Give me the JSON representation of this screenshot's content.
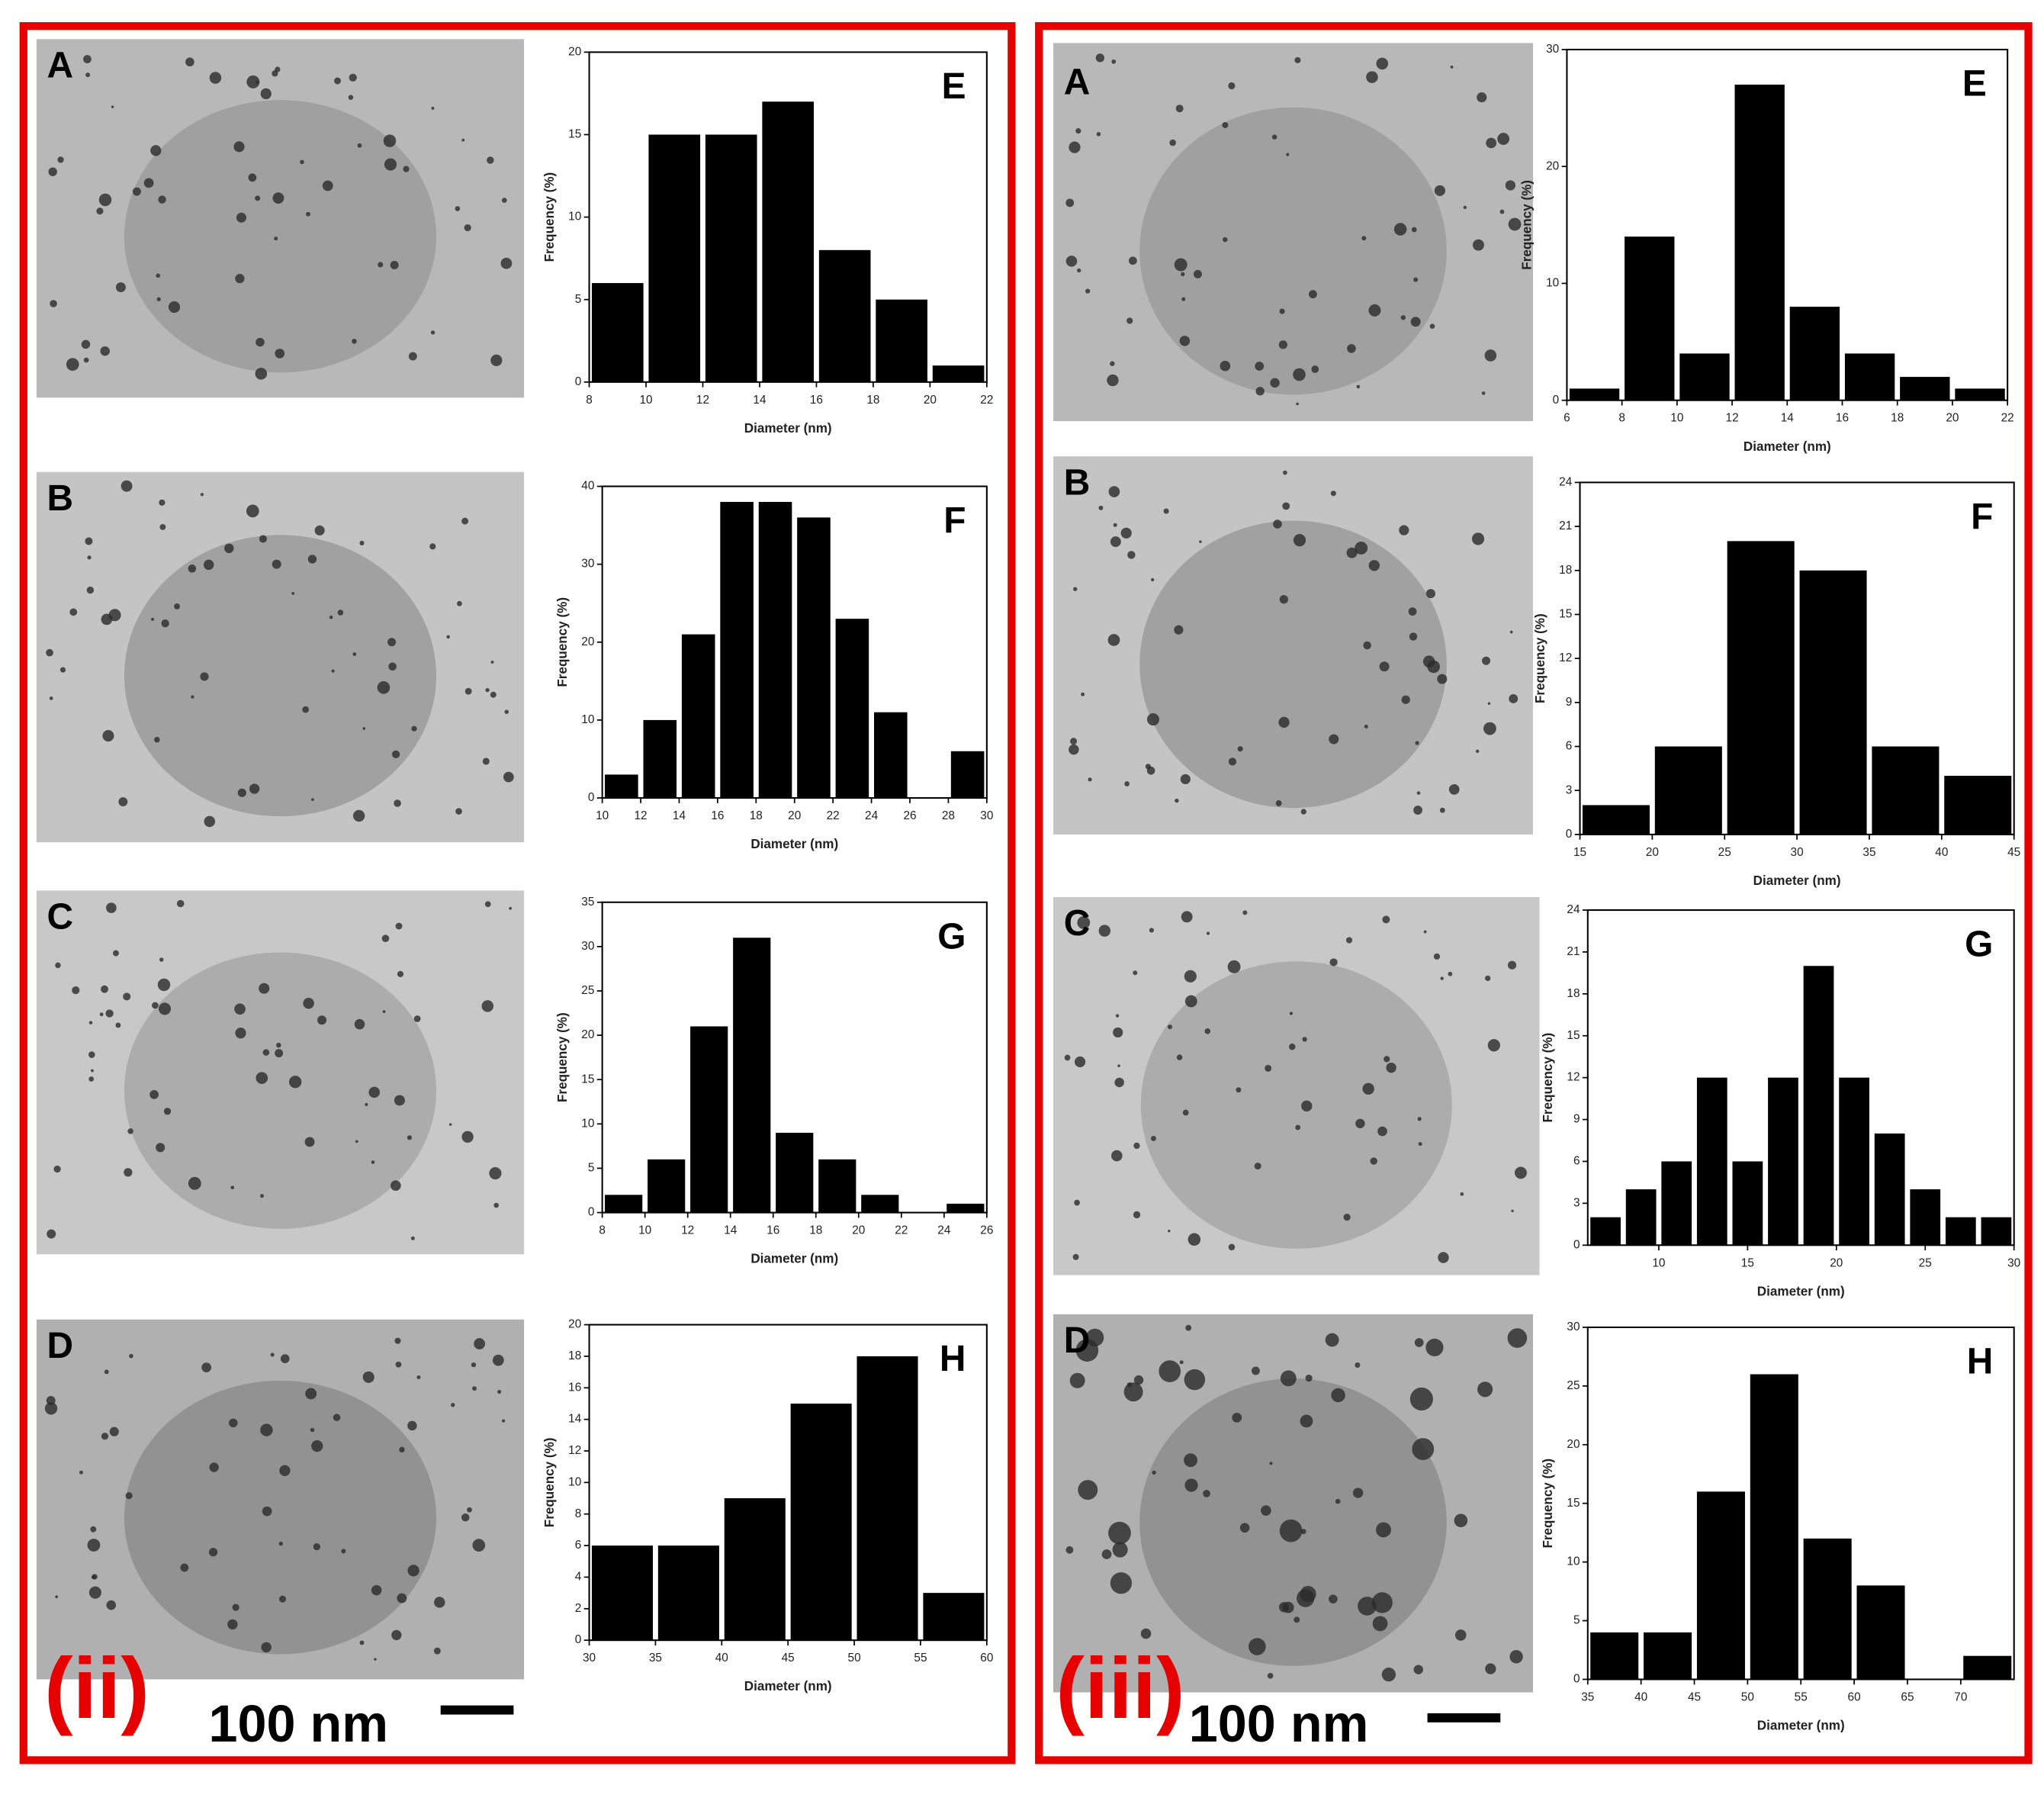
{
  "panels": [
    {
      "label": "(ii)",
      "scale_bar": "100 nm",
      "images": [
        "A",
        "B",
        "C",
        "D"
      ]
    },
    {
      "label": "(iii)",
      "scale_bar": "100 nm",
      "images": [
        "A",
        "B",
        "C",
        "D"
      ]
    }
  ],
  "chart_data": [
    {
      "type": "histogram",
      "title": "E",
      "x_label": "Diameter (nm)",
      "y_label": "Frequency (%)",
      "color": "#000000",
      "bins": [
        8,
        10,
        12,
        14,
        16,
        18,
        20,
        22
      ],
      "values": [
        6,
        15,
        15,
        17,
        8,
        5,
        1
      ],
      "xlim": [
        8,
        22
      ],
      "ylim": [
        0,
        20
      ],
      "xticks": [
        8,
        10,
        12,
        14,
        16,
        18,
        20,
        22
      ],
      "yticks": [
        0,
        5,
        10,
        15,
        20
      ]
    },
    {
      "type": "histogram",
      "title": "F",
      "x_label": "Diameter (nm)",
      "y_label": "Frequency (%)",
      "color": "#000000",
      "bins": [
        10,
        12,
        14,
        16,
        18,
        20,
        22,
        24,
        26,
        28,
        30
      ],
      "values": [
        3,
        10,
        21,
        38,
        38,
        36,
        23,
        11,
        0,
        6
      ],
      "xlim": [
        10,
        30
      ],
      "ylim": [
        0,
        40
      ],
      "xticks": [
        10,
        12,
        14,
        16,
        18,
        20,
        22,
        24,
        26,
        28,
        30
      ],
      "yticks": [
        0,
        10,
        20,
        30,
        40
      ]
    },
    {
      "type": "histogram",
      "title": "G",
      "x_label": "Diameter (nm)",
      "y_label": "Frequency (%)",
      "color": "#000000",
      "bins": [
        8,
        10,
        12,
        14,
        16,
        18,
        20,
        22,
        24,
        26
      ],
      "values": [
        2,
        6,
        21,
        31,
        9,
        6,
        2,
        0,
        1
      ],
      "xlim": [
        8,
        26
      ],
      "ylim": [
        0,
        35
      ],
      "xticks": [
        8,
        10,
        12,
        14,
        16,
        18,
        20,
        22,
        24,
        26
      ],
      "yticks": [
        0,
        5,
        10,
        15,
        20,
        25,
        30,
        35
      ]
    },
    {
      "type": "histogram",
      "title": "H",
      "x_label": "Diameter (nm)",
      "y_label": "Frequency (%)",
      "color": "#000000",
      "bins": [
        30,
        35,
        40,
        45,
        50,
        55,
        60
      ],
      "values": [
        6,
        6,
        9,
        15,
        18,
        3
      ],
      "xlim": [
        30,
        60
      ],
      "ylim": [
        0,
        20
      ],
      "xticks": [
        30,
        35,
        40,
        45,
        50,
        55,
        60
      ],
      "yticks": [
        0,
        2,
        4,
        6,
        8,
        10,
        12,
        14,
        16,
        18,
        20
      ]
    },
    {
      "type": "histogram",
      "title": "E",
      "x_label": "Diameter (nm)",
      "y_label": "Frequency (%)",
      "color": "#000000",
      "bins": [
        6,
        8,
        10,
        12,
        14,
        16,
        18,
        20,
        22
      ],
      "values": [
        1,
        14,
        4,
        27,
        8,
        4,
        2,
        1
      ],
      "xlim": [
        6,
        22
      ],
      "ylim": [
        0,
        30
      ],
      "xticks": [
        6,
        8,
        10,
        12,
        14,
        16,
        18,
        20,
        22
      ],
      "yticks": [
        0,
        10,
        20,
        30
      ]
    },
    {
      "type": "histogram",
      "title": "F",
      "x_label": "Diameter (nm)",
      "y_label": "Frequency (%)",
      "color": "#000000",
      "bins": [
        15,
        20,
        25,
        30,
        35,
        40,
        45
      ],
      "values": [
        2,
        6,
        20,
        18,
        6,
        4
      ],
      "xlim": [
        15,
        45
      ],
      "ylim": [
        0,
        24
      ],
      "xticks": [
        15,
        20,
        25,
        30,
        35,
        40,
        45
      ],
      "yticks": [
        0,
        3,
        6,
        9,
        12,
        15,
        18,
        21,
        24
      ]
    },
    {
      "type": "histogram",
      "title": "G",
      "x_label": "Diameter (nm)",
      "y_label": "Frequency (%)",
      "color": "#000000",
      "bins": [
        6,
        8,
        10,
        12,
        14,
        16,
        18,
        20,
        22,
        24,
        26,
        28,
        30
      ],
      "values": [
        2,
        4,
        6,
        12,
        6,
        12,
        20,
        12,
        8,
        4,
        2,
        2
      ],
      "xlim": [
        6,
        30
      ],
      "ylim": [
        0,
        24
      ],
      "xticks": [
        10,
        15,
        20,
        25,
        30
      ],
      "yticks": [
        0,
        3,
        6,
        9,
        12,
        15,
        18,
        21,
        24
      ]
    },
    {
      "type": "histogram",
      "title": "H",
      "x_label": "Diameter (nm)",
      "y_label": "Frequency (%)",
      "color": "#000000",
      "bins": [
        35,
        40,
        45,
        50,
        55,
        60,
        65,
        70,
        75
      ],
      "values": [
        4,
        4,
        16,
        26,
        12,
        8,
        0,
        2
      ],
      "xlim": [
        35,
        75
      ],
      "ylim": [
        0,
        30
      ],
      "xticks": [
        35,
        40,
        45,
        50,
        55,
        60,
        65,
        70
      ],
      "yticks": [
        0,
        5,
        10,
        15,
        20,
        25,
        30
      ]
    }
  ]
}
